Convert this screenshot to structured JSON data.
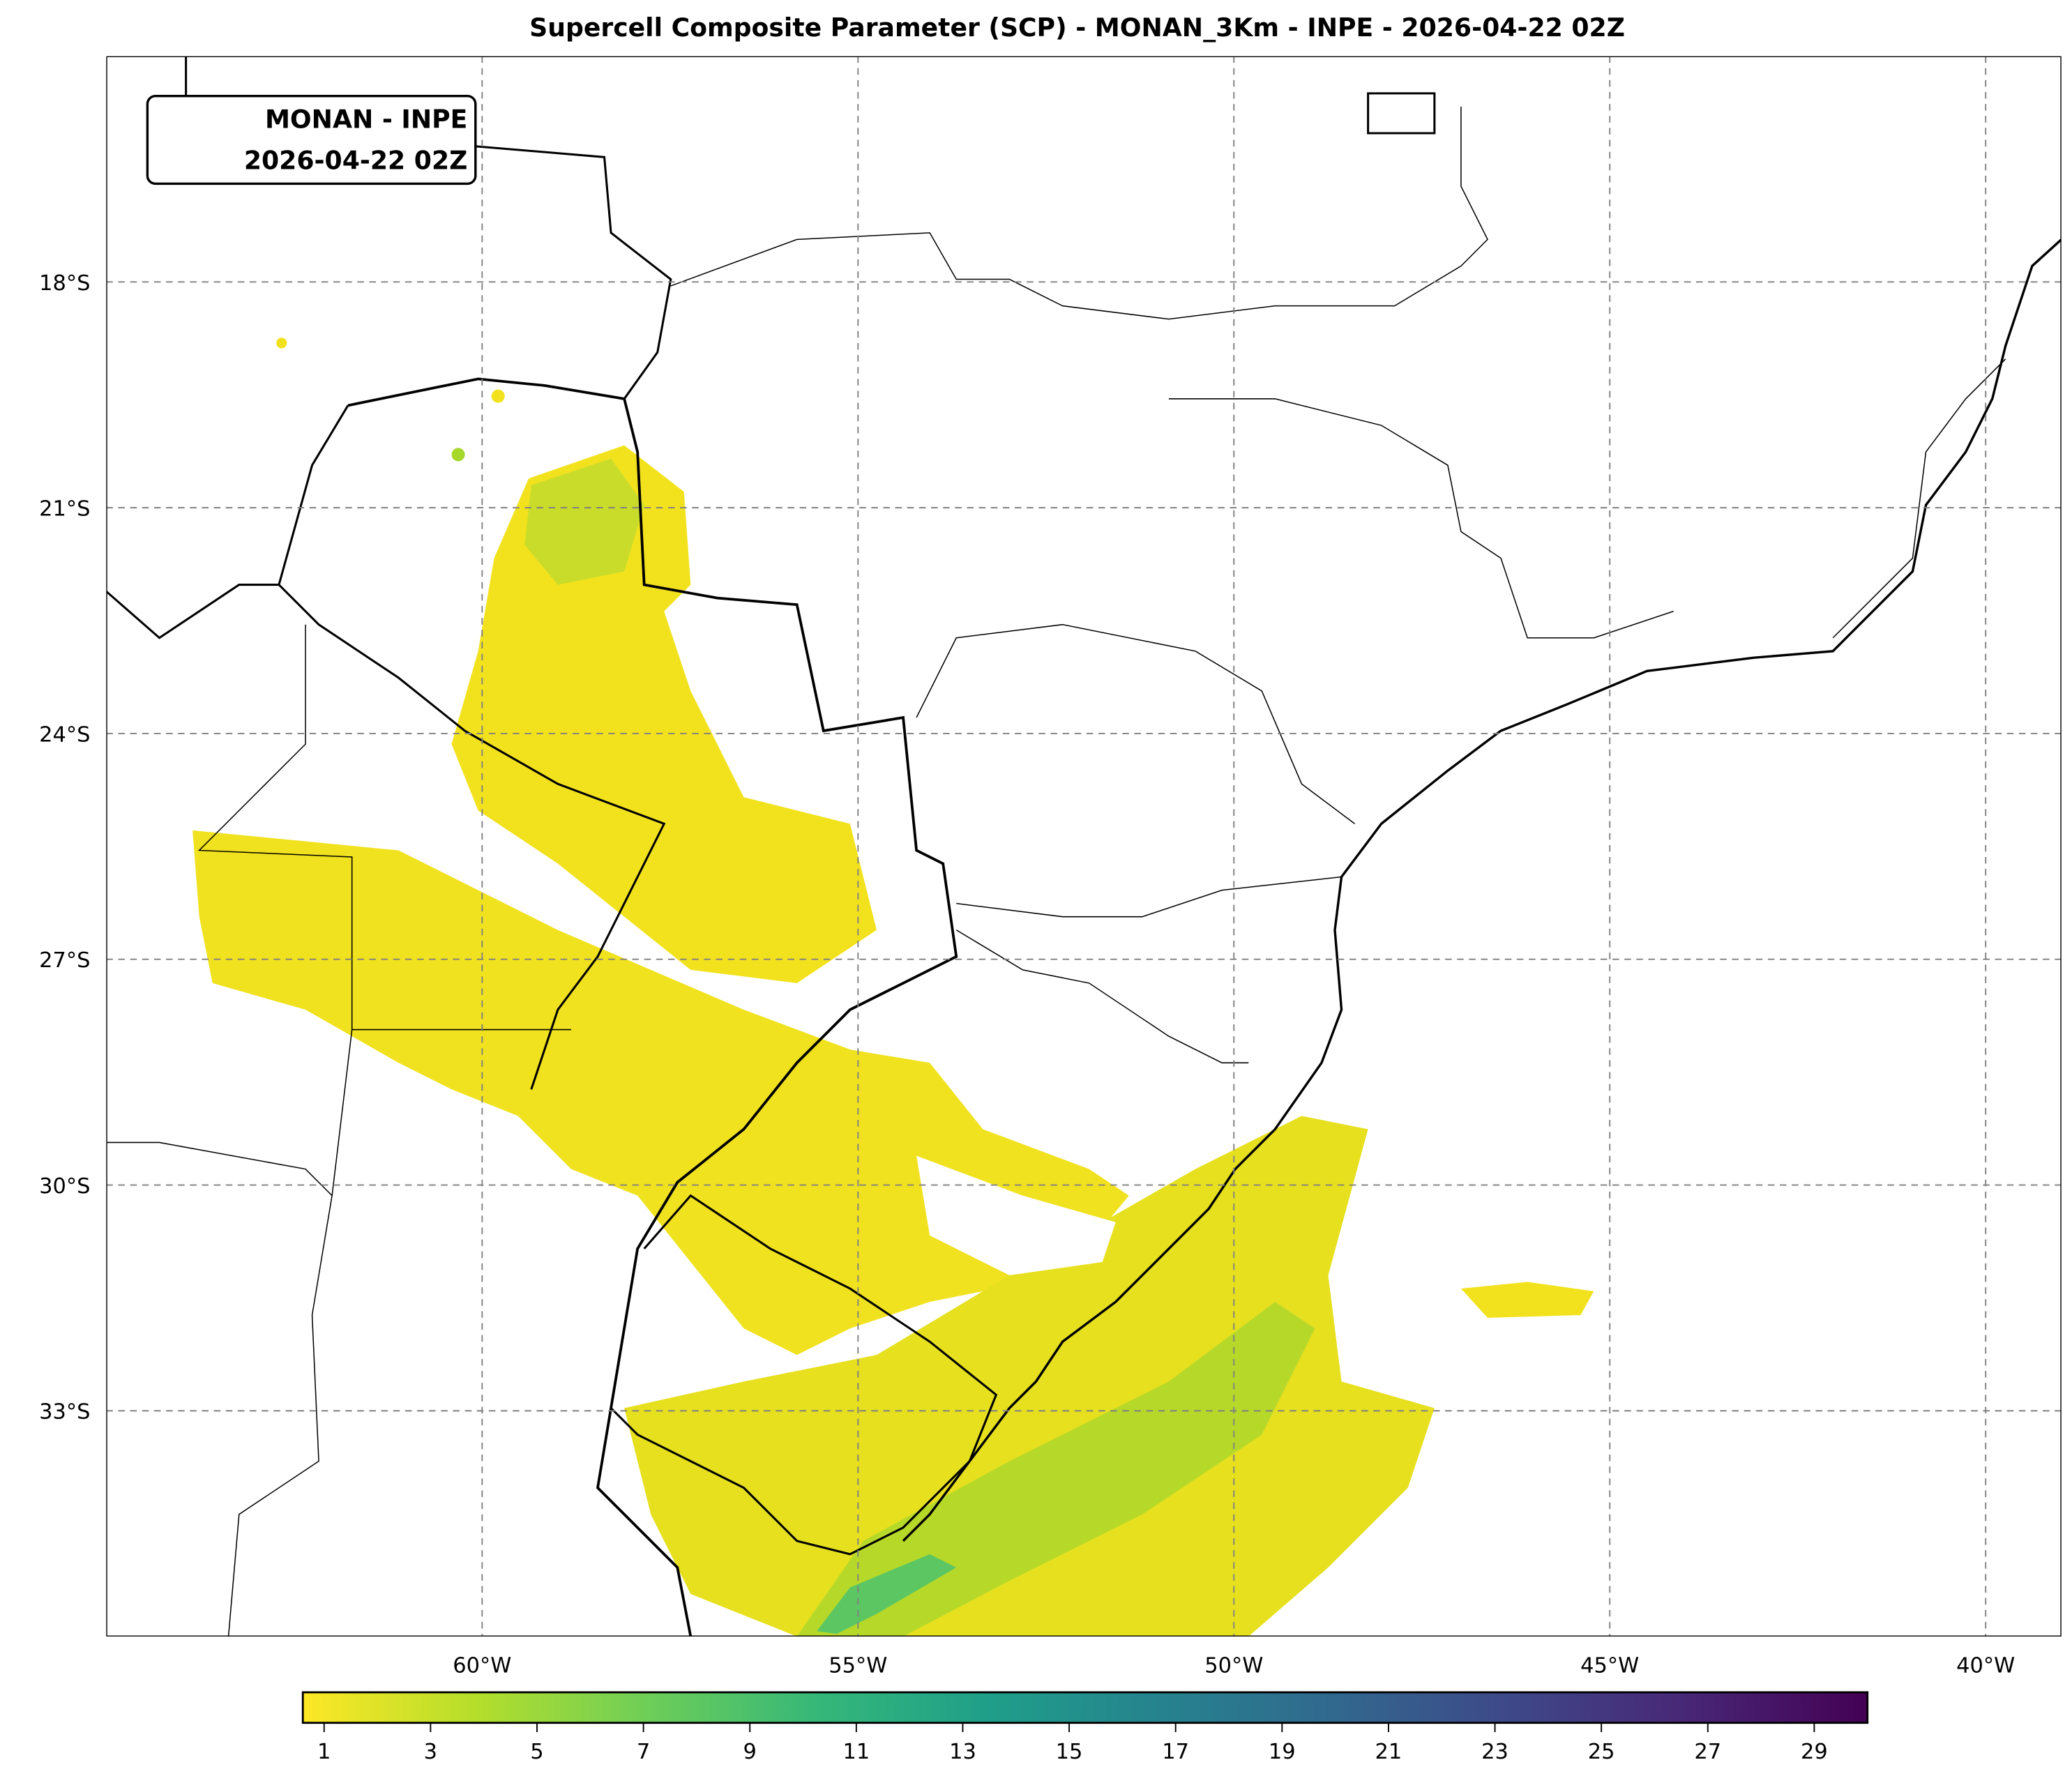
{
  "title": "Supercell Composite Parameter (SCP) - MONAN_3Km - INPE - 2026-04-22 02Z",
  "annotation": {
    "line1": "MONAN - INPE",
    "line2": "2026-04-22 02Z"
  },
  "map": {
    "lon_labels": [
      {
        "lon": -60,
        "label": "60°W"
      },
      {
        "lon": -55,
        "label": "55°W"
      },
      {
        "lon": -50,
        "label": "50°W"
      },
      {
        "lon": -45,
        "label": "45°W"
      },
      {
        "lon": -40,
        "label": "40°W"
      }
    ],
    "lat_labels": [
      {
        "lat": -18,
        "label": "18°S"
      },
      {
        "lat": -21,
        "label": "21°S"
      },
      {
        "lat": -24,
        "label": "24°S"
      },
      {
        "lat": -27,
        "label": "27°S"
      },
      {
        "lat": -30,
        "label": "30°S"
      },
      {
        "lat": -33,
        "label": "33°S"
      }
    ],
    "extent": {
      "lon": [
        -65,
        -39
      ],
      "lat": [
        -36,
        -15
      ]
    }
  },
  "colorbar": {
    "colormap": "viridis_r",
    "range": [
      0.6,
      30
    ],
    "ticks": [
      "1",
      "3",
      "5",
      "7",
      "9",
      "11",
      "13",
      "15",
      "17",
      "19",
      "21",
      "23",
      "25",
      "27",
      "29"
    ],
    "colors": [
      "#fde725",
      "#b5de2b",
      "#6ece58",
      "#35b779",
      "#1f9e89",
      "#26828e",
      "#31688e",
      "#3e4989",
      "#482878",
      "#440154"
    ]
  }
}
